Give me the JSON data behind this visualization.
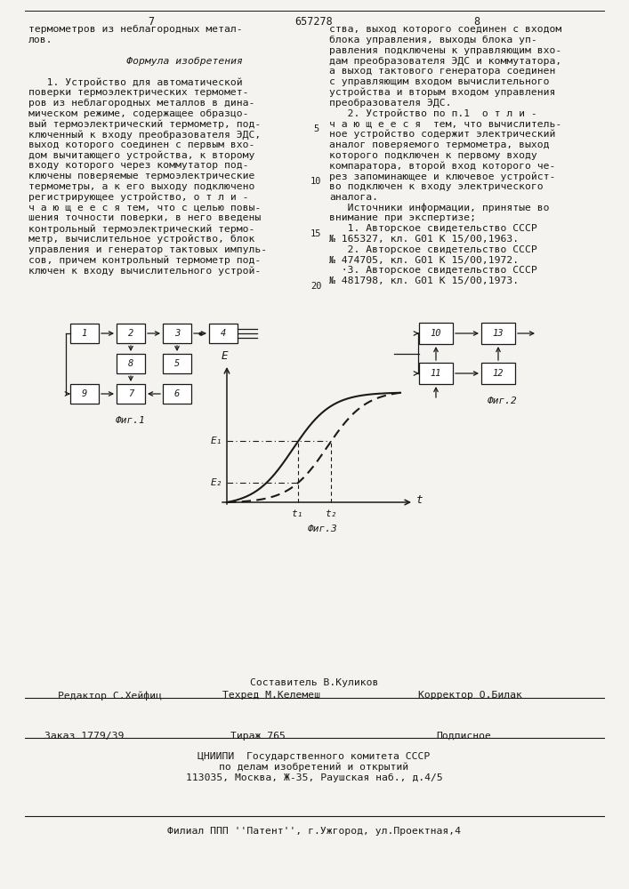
{
  "page_number_left": "7",
  "page_number_center": "657278",
  "page_number_right": "8",
  "bg_color": "#f5f3ef",
  "text_color": "#1a1a1a",
  "fig1_caption": "Фиг.1",
  "fig2_caption": "Фиг.2",
  "fig3_caption": "Фиг.3",
  "footer_sestavitel": "Составитель В.Куликов",
  "footer_editor": "Редактор С.Хейфиц",
  "footer_techred": "Техред М.Келемеш",
  "footer_corrector": "Корректор О.Билак",
  "footer_order": "Заказ 1779/39",
  "footer_tirazh": "Тираж 765",
  "footer_podpisnoe": "Подписное",
  "footer_cniipi": "ЦНИИПИ  Государственного комитета СССР",
  "footer_po_delam": "по делам изобретений и открытий",
  "footer_address": "113035, Москва, Ж-35, Раушская наб., д.4/5",
  "footer_filial": "Филиал ППП ''Патент'', г.Ужгород, ул.Проектная,4"
}
